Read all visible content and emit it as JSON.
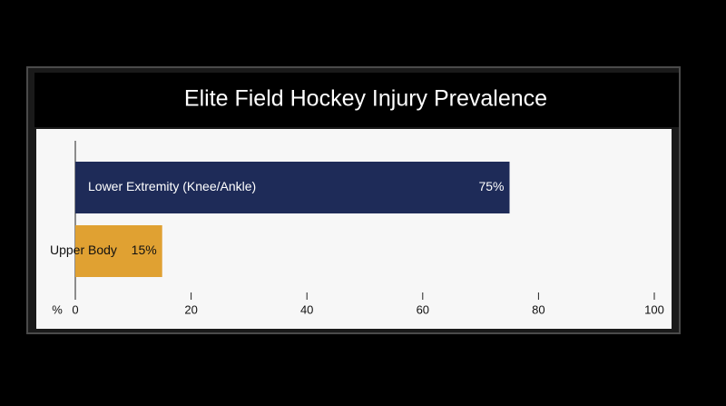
{
  "chart_data": {
    "type": "bar",
    "orientation": "horizontal",
    "title": "Elite Field Hockey Injury Prevalence",
    "categories": [
      "Lower Extremity (Knee/Ankle)",
      "Upper Body"
    ],
    "values": [
      75,
      15
    ],
    "value_labels": [
      "75%",
      "15%"
    ],
    "colors": [
      "#1e2b58",
      "#e0a132"
    ],
    "xlabel": "%",
    "xlim": [
      0,
      100
    ],
    "xticks": [
      0,
      20,
      40,
      60,
      80,
      100
    ]
  }
}
